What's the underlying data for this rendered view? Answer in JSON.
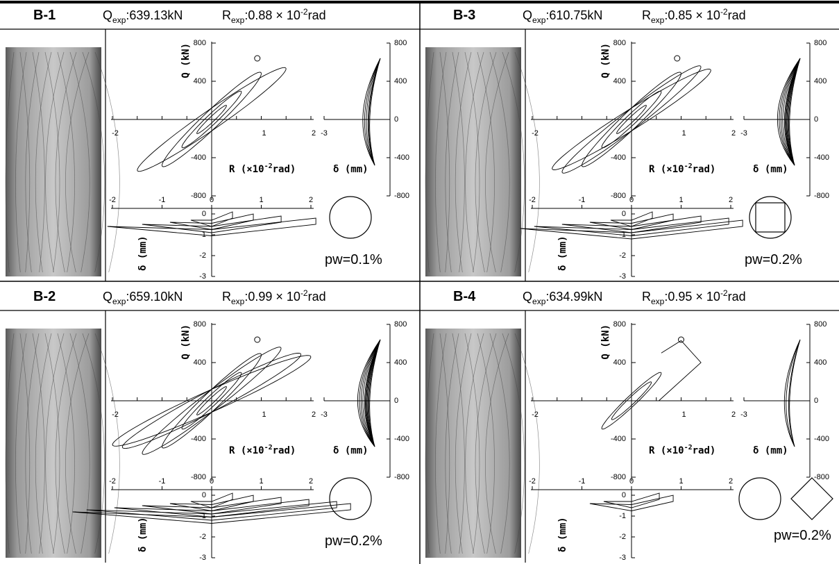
{
  "panels": [
    {
      "id": "B-1",
      "q": {
        "symbol": "Q",
        "sub": "exp",
        "value": ":639.13kN"
      },
      "r": {
        "symbol": "R",
        "sub": "exp",
        "value": ":0.88 × 10",
        "exp": "-2",
        "unit": "rad"
      },
      "pw": "pw=0.1%"
    },
    {
      "id": "B-3",
      "q": {
        "symbol": "Q",
        "sub": "exp",
        "value": ":610.75kN"
      },
      "r": {
        "symbol": "R",
        "sub": "exp",
        "value": ":0.85 × 10",
        "exp": "-2",
        "unit": "rad"
      },
      "pw": "pw=0.2%"
    },
    {
      "id": "B-2",
      "q": {
        "symbol": "Q",
        "sub": "exp",
        "value": ":659.10kN"
      },
      "r": {
        "symbol": "R",
        "sub": "exp",
        "value": ":0.99 × 10",
        "exp": "-2",
        "unit": "rad"
      },
      "pw": "pw=0.2%"
    },
    {
      "id": "B-4",
      "q": {
        "symbol": "Q",
        "sub": "exp",
        "value": ":634.99kN"
      },
      "r": {
        "symbol": "R",
        "sub": "exp",
        "value": ":0.95 × 10",
        "exp": "-2",
        "unit": "rad"
      },
      "pw": "pw=0.2%"
    }
  ],
  "axes": {
    "q_label": "Q (kN)",
    "r_label": {
      "text": "R (×10",
      "exp": "-2",
      "unit": "rad)"
    },
    "delta_label": "δ (mm)",
    "main_yticks": [
      800,
      400,
      -400,
      -800
    ],
    "main_xticks": [
      -2,
      1,
      2
    ],
    "right_yticks": [
      800,
      400,
      0,
      -400,
      -800
    ],
    "right_xtick": -3,
    "bottom_xticks": [
      -2,
      -1,
      0,
      1,
      2
    ],
    "bottom_yticks": [
      0,
      -1,
      -2,
      -3
    ]
  }
}
